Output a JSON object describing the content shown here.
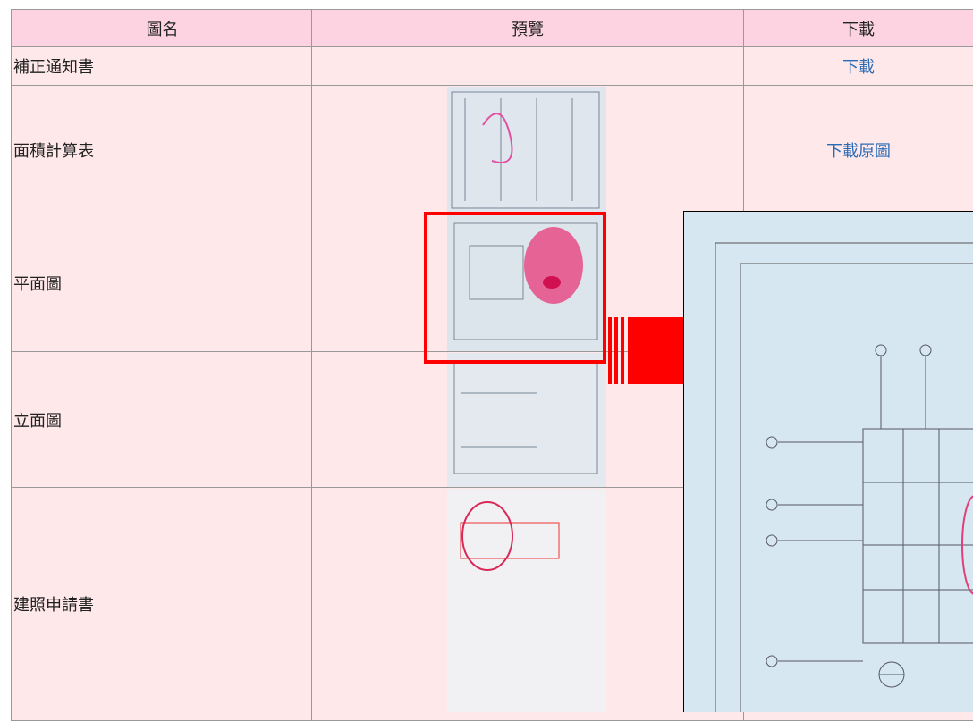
{
  "table": {
    "headers": [
      "圖名",
      "預覽",
      "下載"
    ],
    "rows": [
      {
        "name": "補正通知書",
        "download": "下載"
      },
      {
        "name": "面積計算表",
        "download": "下載原圖"
      },
      {
        "name": "平面圖"
      },
      {
        "name": "立面圖"
      },
      {
        "name": "建照申請書"
      }
    ]
  }
}
